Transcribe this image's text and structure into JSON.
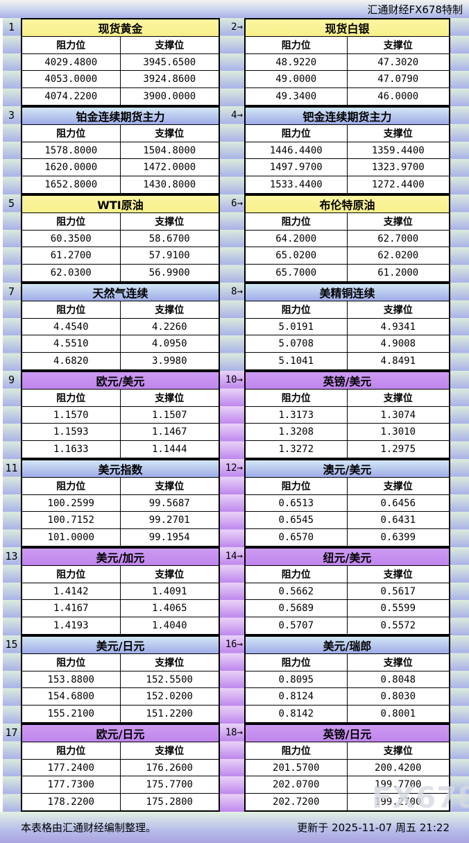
{
  "header": {
    "brand": "汇通财经FX678特制"
  },
  "column_headers": {
    "resistance": "阻力位",
    "support": "支撑位"
  },
  "pairs": [
    {
      "middle": "plain",
      "left": {
        "index": "1",
        "title": "现货黄金",
        "theme": "yellow",
        "rows": [
          [
            "4029.4800",
            "3945.6500"
          ],
          [
            "4053.0000",
            "3924.8600"
          ],
          [
            "4074.2200",
            "3900.0000"
          ]
        ]
      },
      "right": {
        "index": "2→",
        "title": "现货白银",
        "theme": "yellow",
        "rows": [
          [
            "48.9220",
            "47.3020"
          ],
          [
            "49.0000",
            "47.0790"
          ],
          [
            "49.3400",
            "46.0000"
          ]
        ]
      }
    },
    {
      "middle": "plain",
      "left": {
        "index": "3",
        "title": "铂金连续期货主力",
        "theme": "blue",
        "rows": [
          [
            "1578.8000",
            "1504.8000"
          ],
          [
            "1620.0000",
            "1472.0000"
          ],
          [
            "1652.8000",
            "1430.8000"
          ]
        ]
      },
      "right": {
        "index": "4→",
        "title": "钯金连续期货主力",
        "theme": "blue",
        "rows": [
          [
            "1446.4400",
            "1359.4400"
          ],
          [
            "1497.9700",
            "1323.9700"
          ],
          [
            "1533.4400",
            "1272.4400"
          ]
        ]
      }
    },
    {
      "middle": "plain",
      "left": {
        "index": "5",
        "title": "WTI原油",
        "theme": "yellow",
        "rows": [
          [
            "60.3500",
            "58.6700"
          ],
          [
            "61.2700",
            "57.9100"
          ],
          [
            "62.0300",
            "56.9900"
          ]
        ]
      },
      "right": {
        "index": "6→",
        "title": "布伦特原油",
        "theme": "yellow",
        "rows": [
          [
            "64.2000",
            "62.7000"
          ],
          [
            "65.0200",
            "62.0200"
          ],
          [
            "65.7000",
            "61.2000"
          ]
        ]
      }
    },
    {
      "middle": "plain",
      "left": {
        "index": "7",
        "title": "天然气连续",
        "theme": "blue",
        "rows": [
          [
            "4.4540",
            "4.2260"
          ],
          [
            "4.5510",
            "4.0950"
          ],
          [
            "4.6820",
            "3.9980"
          ]
        ]
      },
      "right": {
        "index": "8→",
        "title": "美精铜连续",
        "theme": "blue",
        "rows": [
          [
            "5.0191",
            "4.9341"
          ],
          [
            "5.0708",
            "4.9008"
          ],
          [
            "5.1041",
            "4.8491"
          ]
        ]
      }
    },
    {
      "middle": "purple",
      "left": {
        "index": "9",
        "title": "欧元/美元",
        "theme": "purple",
        "rows": [
          [
            "1.1570",
            "1.1507"
          ],
          [
            "1.1593",
            "1.1467"
          ],
          [
            "1.1633",
            "1.1444"
          ]
        ]
      },
      "right": {
        "index": "10→",
        "title": "英镑/美元",
        "theme": "purple",
        "rows": [
          [
            "1.3173",
            "1.3074"
          ],
          [
            "1.3208",
            "1.3010"
          ],
          [
            "1.3272",
            "1.2975"
          ]
        ]
      }
    },
    {
      "middle": "purple",
      "left": {
        "index": "11",
        "title": "美元指数",
        "theme": "blue",
        "rows": [
          [
            "100.2599",
            "99.5687"
          ],
          [
            "100.7152",
            "99.2701"
          ],
          [
            "101.0000",
            "99.1954"
          ]
        ]
      },
      "right": {
        "index": "12→",
        "title": "澳元/美元",
        "theme": "blue",
        "rows": [
          [
            "0.6513",
            "0.6456"
          ],
          [
            "0.6545",
            "0.6431"
          ],
          [
            "0.6570",
            "0.6399"
          ]
        ]
      }
    },
    {
      "middle": "purple",
      "left": {
        "index": "13",
        "title": "美元/加元",
        "theme": "purple",
        "rows": [
          [
            "1.4142",
            "1.4091"
          ],
          [
            "1.4167",
            "1.4065"
          ],
          [
            "1.4193",
            "1.4040"
          ]
        ]
      },
      "right": {
        "index": "14→",
        "title": "纽元/美元",
        "theme": "purple",
        "rows": [
          [
            "0.5662",
            "0.5617"
          ],
          [
            "0.5689",
            "0.5599"
          ],
          [
            "0.5707",
            "0.5572"
          ]
        ]
      }
    },
    {
      "middle": "purple",
      "left": {
        "index": "15",
        "title": "美元/日元",
        "theme": "blue",
        "rows": [
          [
            "153.8800",
            "152.5500"
          ],
          [
            "154.6800",
            "152.0200"
          ],
          [
            "155.2100",
            "151.2200"
          ]
        ]
      },
      "right": {
        "index": "16→",
        "title": "美元/瑞郎",
        "theme": "blue",
        "rows": [
          [
            "0.8095",
            "0.8048"
          ],
          [
            "0.8124",
            "0.8030"
          ],
          [
            "0.8142",
            "0.8001"
          ]
        ]
      }
    },
    {
      "middle": "purple",
      "left": {
        "index": "17",
        "title": "欧元/日元",
        "theme": "purple",
        "rows": [
          [
            "177.2400",
            "176.2600"
          ],
          [
            "177.7300",
            "175.7700"
          ],
          [
            "178.2200",
            "175.2800"
          ]
        ]
      },
      "right": {
        "index": "18→",
        "title": "英镑/日元",
        "theme": "purple",
        "rows": [
          [
            "201.5700",
            "200.4200"
          ],
          [
            "202.0700",
            "199.7700"
          ],
          [
            "202.7200",
            "199.2700"
          ]
        ]
      }
    }
  ],
  "footer": {
    "left": "本表格由汇通财经编制整理。",
    "right": "更新于 2025-11-07 周五 21:22",
    "watermark": "FX678"
  },
  "colors": {
    "yellow_title": "#faf392",
    "blue_title_top": "#d2e7f4",
    "blue_title_bottom": "#9fabe8",
    "purple_title": "#c48fef",
    "band_top": "#dcebdc",
    "band_bottom": "#a9b2e8",
    "mid_purple_top": "#e9d3f7",
    "mid_purple_bottom": "#bf87ee"
  }
}
